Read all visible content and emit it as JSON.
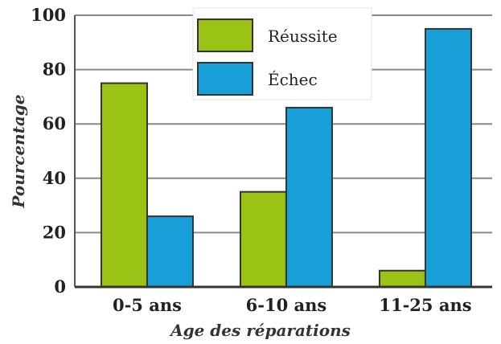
{
  "chart_data": {
    "type": "bar",
    "categories": [
      "0-5 ans",
      "6-10 ans",
      "11-25 ans"
    ],
    "series": [
      {
        "name": "Réussite",
        "values": [
          75,
          35,
          6
        ],
        "color": "#9ac316"
      },
      {
        "name": "Échec",
        "values": [
          26,
          66,
          95
        ],
        "color": "#199fd8"
      }
    ],
    "xlabel": "Age des réparations",
    "ylabel": "Pourcentage",
    "ylim": [
      0,
      100
    ],
    "yticks": [
      0,
      20,
      40,
      60,
      80,
      100
    ],
    "grid": true,
    "legend_position": "top-center"
  }
}
